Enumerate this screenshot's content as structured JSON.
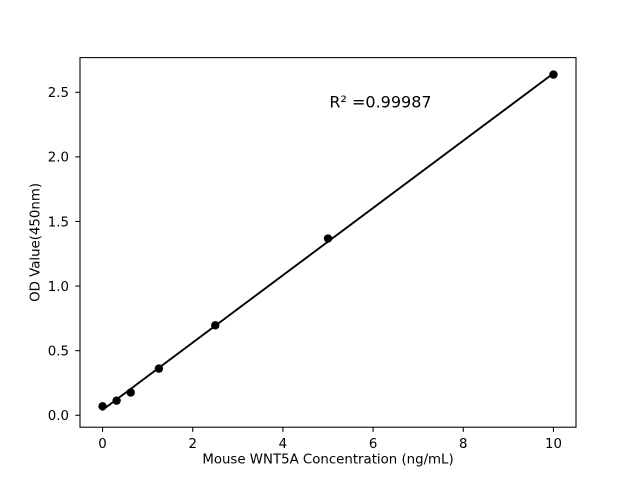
{
  "figure": {
    "background_color": "#ffffff",
    "ink_color": "#000000"
  },
  "chart_data": {
    "type": "scatter",
    "title": "",
    "xlabel": "Mouse WNT5A Concentration (ng/mL)",
    "ylabel": "OD Value(450nm)",
    "annotation": {
      "text": "R² =0.99987",
      "x": 5.03,
      "y": 2.38
    },
    "points": {
      "x": [
        0,
        0.3125,
        0.625,
        1.25,
        2.5,
        5,
        10
      ],
      "y": [
        0.069,
        0.113,
        0.176,
        0.361,
        0.696,
        1.368,
        2.637
      ]
    },
    "trendline": {
      "type": "linear",
      "slope": 0.26053,
      "intercept": 0.04155,
      "x_start": 0,
      "x_end": 10
    },
    "xlim": [
      -0.5,
      10.5
    ],
    "ylim": [
      -0.0925,
      2.7686
    ],
    "xticks": {
      "values": [
        0,
        2,
        4,
        6,
        8,
        10
      ],
      "labels": [
        "0",
        "2",
        "4",
        "6",
        "8",
        "10"
      ]
    },
    "yticks": {
      "values": [
        0.0,
        0.5,
        1.0,
        1.5,
        2.0,
        2.5
      ],
      "labels": [
        "0.0",
        "0.5",
        "1.0",
        "1.5",
        "2.0",
        "2.5"
      ]
    },
    "grid": false,
    "legend": "none",
    "marker": {
      "shape": "circle",
      "color": "#000000"
    },
    "line_color": "#000000"
  }
}
